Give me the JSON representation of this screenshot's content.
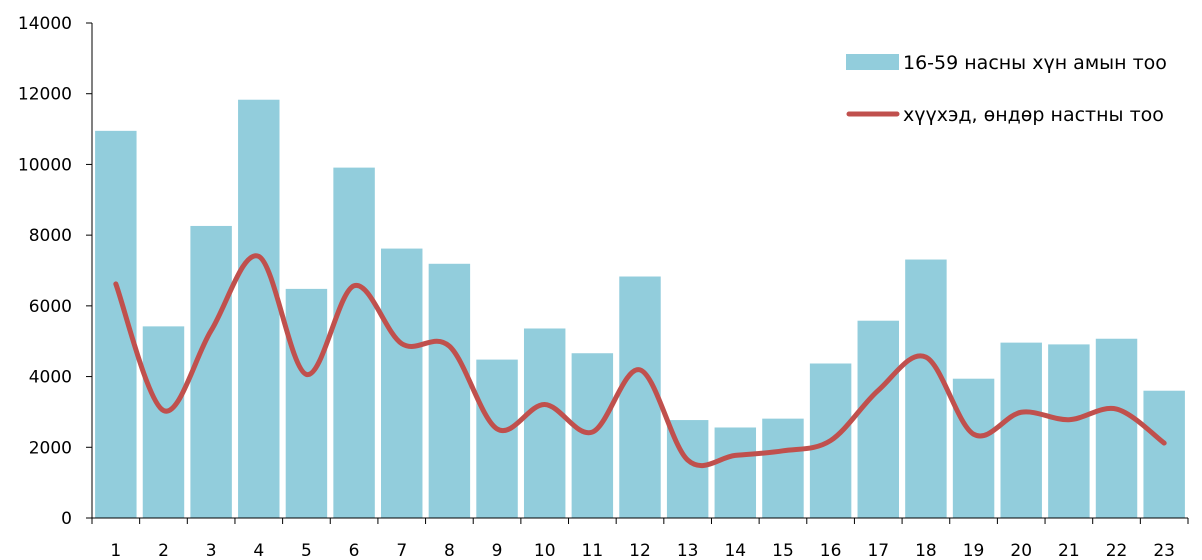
{
  "chart_data": {
    "type": "bar",
    "title": "",
    "xlabel": "",
    "ylabel": "",
    "ylim": [
      0,
      14000
    ],
    "yticks": [
      0,
      2000,
      4000,
      6000,
      8000,
      10000,
      12000,
      14000
    ],
    "categories": [
      "1",
      "2",
      "3",
      "4",
      "5",
      "6",
      "7",
      "8",
      "9",
      "10",
      "11",
      "12",
      "13",
      "14",
      "15",
      "16",
      "17",
      "18",
      "19",
      "20",
      "21",
      "22",
      "23"
    ],
    "grid": false,
    "legend_position": "top-right",
    "series": [
      {
        "name": "16-59 насны хүн амын тоо",
        "type": "bar",
        "color": "#92cddc",
        "values": [
          10950,
          5420,
          8260,
          11830,
          6480,
          9910,
          7620,
          7190,
          4480,
          5360,
          4660,
          6830,
          2770,
          2560,
          2810,
          4370,
          5580,
          7310,
          3940,
          4960,
          4910,
          5070,
          3600
        ]
      },
      {
        "name": "хүүхэд, өндөр настны тоо",
        "type": "line",
        "smooth": true,
        "color": "#c0504d",
        "values": [
          6620,
          3040,
          5300,
          7400,
          4060,
          6570,
          4930,
          4860,
          2520,
          3210,
          2430,
          4190,
          1640,
          1770,
          1900,
          2190,
          3610,
          4550,
          2370,
          2990,
          2780,
          3080,
          2120
        ]
      }
    ]
  }
}
